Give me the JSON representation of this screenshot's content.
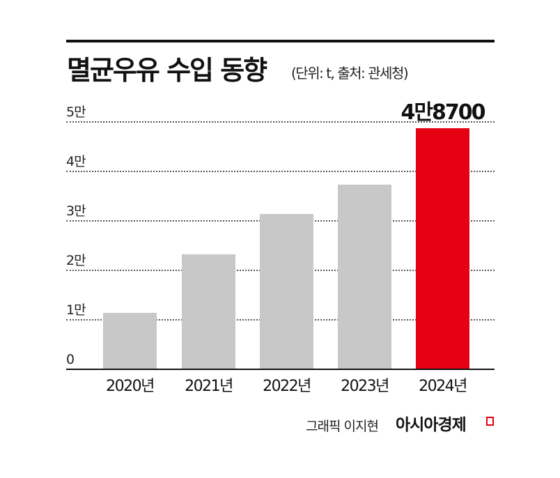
{
  "header": {
    "title": "멸균우유 수입 동향",
    "subtitle": "(단위: t, 출처: 관세청)"
  },
  "footer": {
    "credit": "그래픽 이지현",
    "brand": "아시아경제"
  },
  "colors": {
    "bar_default": "#c8c8c9",
    "bar_highlight": "#e50012",
    "axis": "#111111"
  },
  "y_ticks": [
    "0",
    "1만",
    "2만",
    "3만",
    "4만",
    "5만"
  ],
  "highlight_label": "4만8700",
  "chart_data": {
    "type": "bar",
    "title": "멸균우유 수입 동향",
    "subtitle": "(단위: t, 출처: 관세청)",
    "categories": [
      "2020년",
      "2021년",
      "2022년",
      "2023년",
      "2024년"
    ],
    "values": [
      11400,
      23200,
      31400,
      37300,
      48700
    ],
    "unit": "t",
    "source": "관세청",
    "xlabel": "",
    "ylabel": "",
    "ylim": [
      0,
      50000
    ],
    "yticks": [
      0,
      10000,
      20000,
      30000,
      40000,
      50000
    ],
    "ytick_labels": [
      "0",
      "1만",
      "2만",
      "3만",
      "4만",
      "5만"
    ],
    "grid": "horizontal dotted",
    "legend": "none",
    "annotations": [
      {
        "category": "2024년",
        "text": "4만8700"
      }
    ],
    "highlight": {
      "category": "2024년",
      "color": "#e50012"
    }
  }
}
